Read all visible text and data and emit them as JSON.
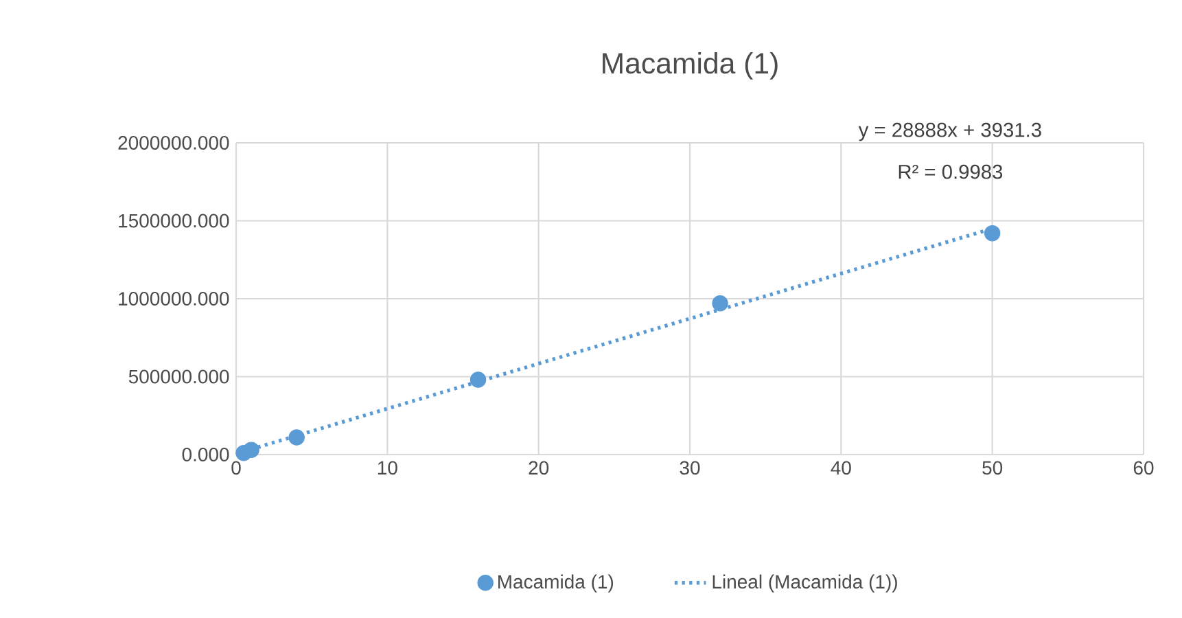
{
  "chart_data": {
    "type": "scatter",
    "title": "Macamida (1)",
    "annotations": [
      "y = 28888x + 3931.3",
      "R² = 0.9983"
    ],
    "xlim": [
      0,
      60
    ],
    "xticks": [
      0,
      10,
      20,
      30,
      40,
      50,
      60
    ],
    "ylim": [
      0,
      2000000
    ],
    "yticks": [
      {
        "value": 0,
        "label": "0.000"
      },
      {
        "value": 500000,
        "label": "500000.000"
      },
      {
        "value": 1000000,
        "label": "1000000.000"
      },
      {
        "value": 1500000,
        "label": "1500000.000"
      },
      {
        "value": 2000000,
        "label": "2000000.000"
      }
    ],
    "grid": true,
    "legend": "bottom",
    "series": [
      {
        "name": "Macamida (1)",
        "color": "#5b9bd5",
        "marker": "circle",
        "x": [
          0.5,
          1,
          4,
          16,
          32,
          50
        ],
        "values": [
          10000,
          30000,
          110000,
          480000,
          970000,
          1420000
        ]
      },
      {
        "name": "Lineal (Macamida (1))",
        "type": "line",
        "color": "#5b9bd5",
        "marker": "none",
        "line_style": "dotted",
        "x": [
          0.5,
          50
        ],
        "values": [
          20000,
          1450000
        ]
      }
    ]
  }
}
